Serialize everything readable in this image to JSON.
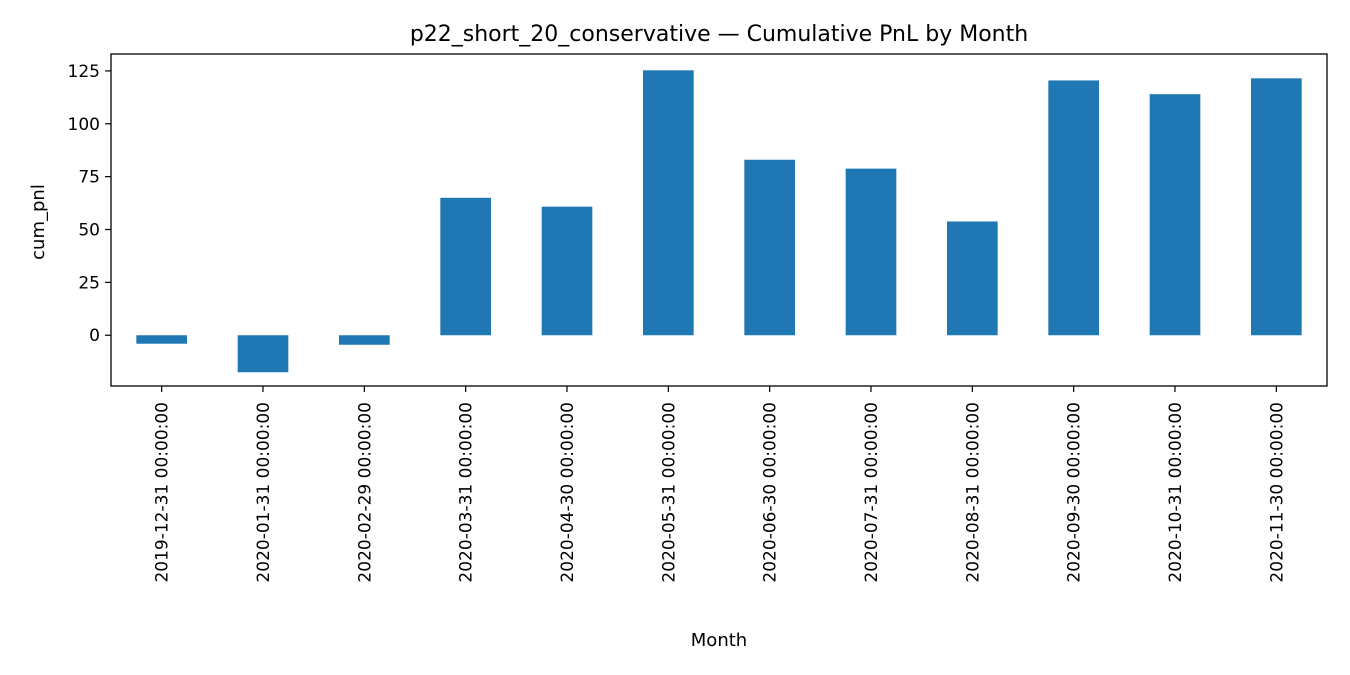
{
  "chart_data": {
    "type": "bar",
    "title": "p22_short_20_conservative — Cumulative PnL by Month",
    "xlabel": "Month",
    "ylabel": "cum_pnl",
    "categories": [
      "2019-12-31 00:00:00",
      "2020-01-31 00:00:00",
      "2020-02-29 00:00:00",
      "2020-03-31 00:00:00",
      "2020-04-30 00:00:00",
      "2020-05-31 00:00:00",
      "2020-06-30 00:00:00",
      "2020-07-31 00:00:00",
      "2020-08-31 00:00:00",
      "2020-09-30 00:00:00",
      "2020-10-31 00:00:00",
      "2020-11-30 00:00:00"
    ],
    "values": [
      -4,
      -17.5,
      -4.5,
      65,
      60.8,
      125.3,
      83,
      78.8,
      53.8,
      120.5,
      114,
      121.5
    ],
    "ylim": [
      -24,
      133
    ],
    "yticks": [
      0,
      25,
      50,
      75,
      100,
      125
    ],
    "bar_color": "#1f77b4",
    "grid": false,
    "legend": "none"
  }
}
